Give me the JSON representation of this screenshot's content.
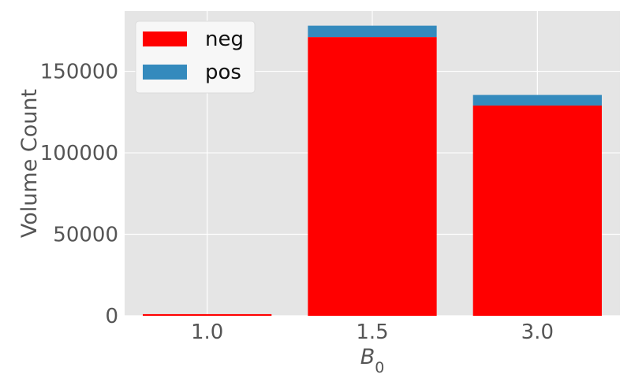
{
  "chart_data": {
    "type": "bar",
    "stacked": true,
    "categories": [
      "1.0",
      "1.5",
      "3.0"
    ],
    "series": [
      {
        "name": "neg",
        "values": [
          1000,
          171000,
          129000
        ],
        "color": "#ff0000"
      },
      {
        "name": "pos",
        "values": [
          0,
          7000,
          6500
        ],
        "color": "#348abd"
      }
    ],
    "xlabel": "B",
    "xlabel_subscript": "0",
    "ylabel": "Volume Count",
    "ylim": [
      0,
      187000
    ],
    "yticks": [
      0,
      50000,
      100000,
      150000
    ],
    "ytick_labels": [
      "0",
      "50000",
      "100000",
      "150000"
    ],
    "grid": true,
    "legend_position": "top-left",
    "background": "#e5e5e5",
    "grid_color": "#ffffff"
  }
}
